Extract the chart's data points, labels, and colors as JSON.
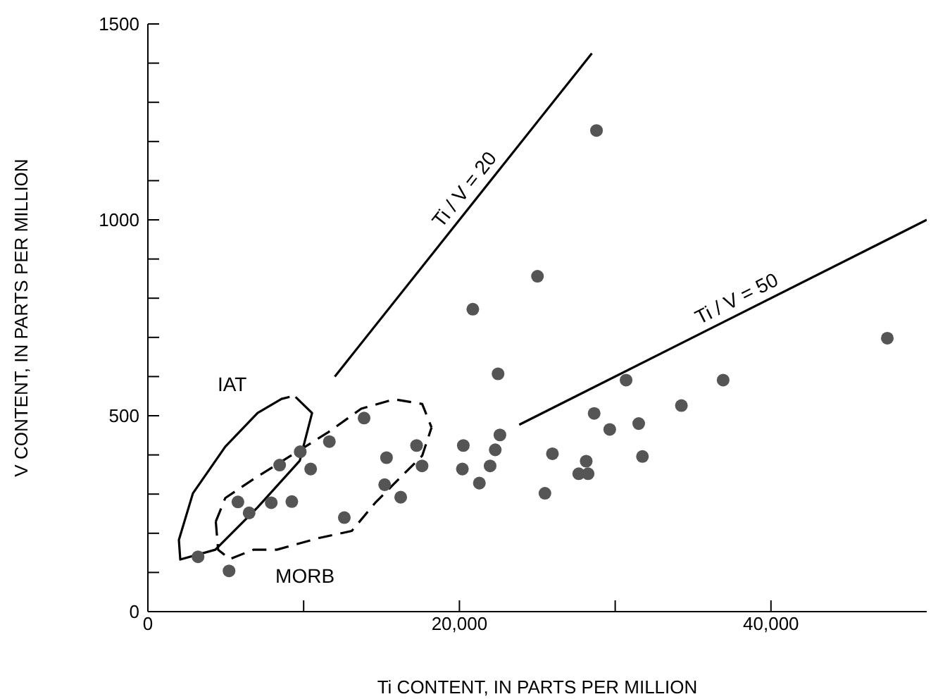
{
  "chart_data": {
    "type": "scatter",
    "xlabel": "Ti CONTENT, IN PARTS PER MILLION",
    "ylabel": "V CONTENT, IN PARTS PER MILLION",
    "xlim": [
      0,
      50000
    ],
    "ylim": [
      0,
      1500
    ],
    "xticks": [
      0,
      {
        "value": 10000,
        "label": null
      },
      {
        "value": 20000,
        "label": "20,000"
      },
      {
        "value": 30000,
        "label": null
      },
      {
        "value": 40000,
        "label": "40,000"
      }
    ],
    "yticks": [
      0,
      {
        "value": 100,
        "label": null
      },
      {
        "value": 200,
        "label": null
      },
      {
        "value": 300,
        "label": null
      },
      {
        "value": 400,
        "label": null
      },
      500,
      {
        "value": 600,
        "label": null
      },
      {
        "value": 700,
        "label": null
      },
      {
        "value": 800,
        "label": null
      },
      {
        "value": 900,
        "label": null
      },
      1000,
      {
        "value": 1100,
        "label": null
      },
      {
        "value": 1200,
        "label": null
      },
      {
        "value": 1300,
        "label": null
      },
      {
        "value": 1400,
        "label": null
      },
      1500
    ],
    "grid": false,
    "series": [
      {
        "color": "#555555",
        "marker": "circle",
        "x": [
          3220,
          5210,
          5780,
          6500,
          7920,
          9240,
          8460,
          9780,
          10450,
          11650,
          13880,
          12610,
          15320,
          15200,
          16230,
          17250,
          17600,
          20250,
          20190,
          28800,
          25010,
          20860,
          22480,
          47470,
          30700,
          36930,
          34250,
          28650,
          31510,
          29650,
          22600,
          22300,
          21970,
          21280,
          25970,
          31750,
          28140,
          27660,
          28260,
          25490
        ],
        "values": [
          140,
          104,
          280,
          252,
          278,
          281,
          374,
          408,
          364,
          434,
          494,
          240,
          393,
          324,
          292,
          424,
          372,
          424,
          364,
          1228,
          856,
          772,
          607,
          698,
          591,
          591,
          526,
          506,
          480,
          465,
          451,
          413,
          372,
          328,
          403,
          396,
          384,
          352,
          352,
          302
        ]
      },
      {
        "type": "line",
        "name": "Ti / V = 20",
        "color": "#000000",
        "marker": "none",
        "line_style": "solid",
        "x": [
          12000,
          28500
        ],
        "values": [
          600,
          1425
        ]
      },
      {
        "type": "line",
        "name": "Ti / V = 50",
        "color": "#000000",
        "marker": "none",
        "line_style": "solid",
        "x": [
          23840,
          50000
        ],
        "values": [
          477,
          1000
        ]
      },
      {
        "type": "line",
        "name": "IAT",
        "color": "#000000",
        "marker": "none",
        "line_style": "solid",
        "x": [
          9480,
          10540,
          9750,
          7040,
          4330,
          2080,
          1990,
          2890,
          4970,
          7040,
          8580,
          9100
        ],
        "values": [
          548,
          507,
          385,
          266,
          158,
          133,
          183,
          302,
          421,
          507,
          543,
          548
        ]
      },
      {
        "type": "line",
        "color": "#000000",
        "marker": "none",
        "line_style": "dashed",
        "x": [
          4360,
          4970,
          6770,
          9180,
          11580,
          13700,
          15800,
          17610,
          18210
        ],
        "values": [
          230,
          290,
          338,
          398,
          458,
          518,
          542,
          530,
          470
        ]
      },
      {
        "type": "line",
        "name": "MORB",
        "color": "#000000",
        "marker": "none",
        "line_style": "dashed",
        "x": [
          4360,
          4510,
          5260,
          6770,
          8280,
          10990,
          13090,
          14600,
          15800,
          17610,
          18210
        ],
        "values": [
          230,
          158,
          134,
          158,
          158,
          188,
          206,
          278,
          326,
          398,
          470
        ]
      }
    ]
  }
}
